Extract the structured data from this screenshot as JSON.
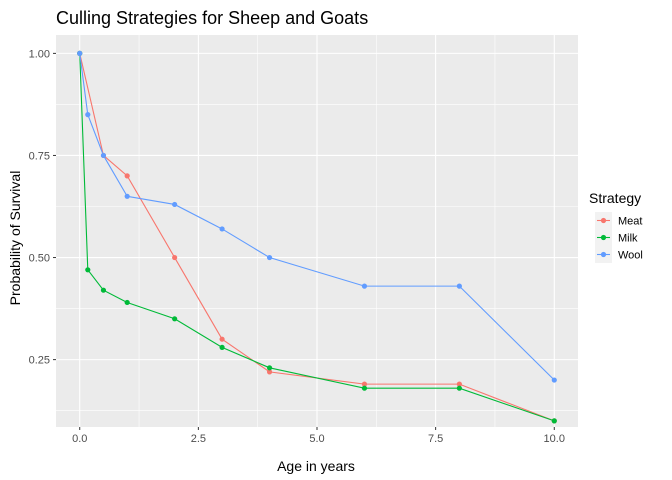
{
  "chart_data": {
    "type": "line",
    "title": "Culling Strategies for Sheep and Goats",
    "xlabel": "Age in years",
    "ylabel": "Probability of Survival",
    "xlim": [
      -0.5,
      10.5
    ],
    "ylim": [
      0.085,
      1.045
    ],
    "x_ticks": [
      0,
      2.5,
      5,
      7.5,
      10
    ],
    "x_tick_labels": [
      "0.0",
      "2.5",
      "5.0",
      "7.5",
      "10.0"
    ],
    "y_ticks": [
      0.25,
      0.5,
      0.75,
      1.0
    ],
    "y_tick_labels": [
      "0.25",
      "0.50",
      "0.75",
      "1.00"
    ],
    "grid": true,
    "legend": {
      "title": "Strategy",
      "position": "right"
    },
    "series": [
      {
        "name": "Meat",
        "color": "#F8766D",
        "x": [
          0,
          0.5,
          1,
          2,
          3,
          4,
          6,
          8,
          10
        ],
        "y": [
          1.0,
          0.75,
          0.7,
          0.5,
          0.3,
          0.22,
          0.19,
          0.19,
          0.1
        ]
      },
      {
        "name": "Milk",
        "color": "#00BA38",
        "x": [
          0,
          0.17,
          0.5,
          1,
          2,
          3,
          4,
          6,
          8,
          10
        ],
        "y": [
          1.0,
          0.47,
          0.42,
          0.39,
          0.35,
          0.28,
          0.23,
          0.18,
          0.18,
          0.1
        ]
      },
      {
        "name": "Wool",
        "color": "#619CFF",
        "x": [
          0,
          0.17,
          0.5,
          1,
          2,
          3,
          4,
          6,
          8,
          10
        ],
        "y": [
          1.0,
          0.85,
          0.75,
          0.65,
          0.63,
          0.57,
          0.5,
          0.43,
          0.43,
          0.2
        ]
      }
    ]
  }
}
